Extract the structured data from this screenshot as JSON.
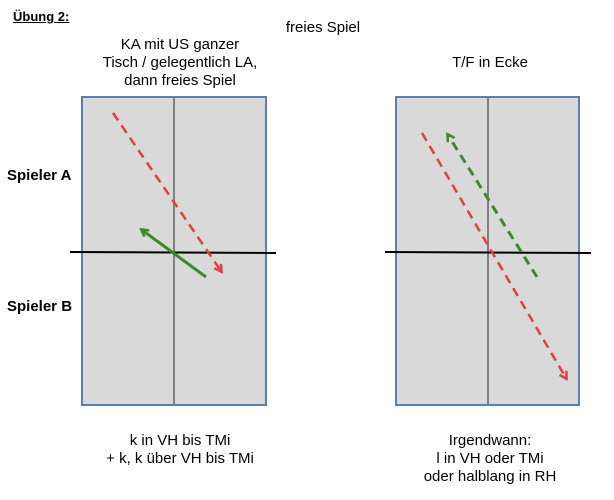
{
  "title": "Übung 2:",
  "subtitle": "freies Spiel",
  "players": {
    "a": "Spieler A",
    "b": "Spieler B"
  },
  "left_table": {
    "heading": [
      "KA mit US ganzer",
      "Tisch / gelegentlich LA,",
      "dann freies Spiel"
    ],
    "caption": [
      "k in VH bis TMi",
      "+ k, k über VH bis TMi"
    ]
  },
  "right_table": {
    "heading": [
      "T/F in Ecke"
    ],
    "caption": [
      "Irgendwann:",
      "l in VH oder TMi",
      "oder halblang in RH"
    ]
  },
  "colors": {
    "table_fill": "#d9d9d9",
    "table_border": "#5a7fb5",
    "center_line": "#808080",
    "net": "#000000",
    "red_arrow": "#e0413a",
    "green_arrow": "#3c8a2a"
  }
}
